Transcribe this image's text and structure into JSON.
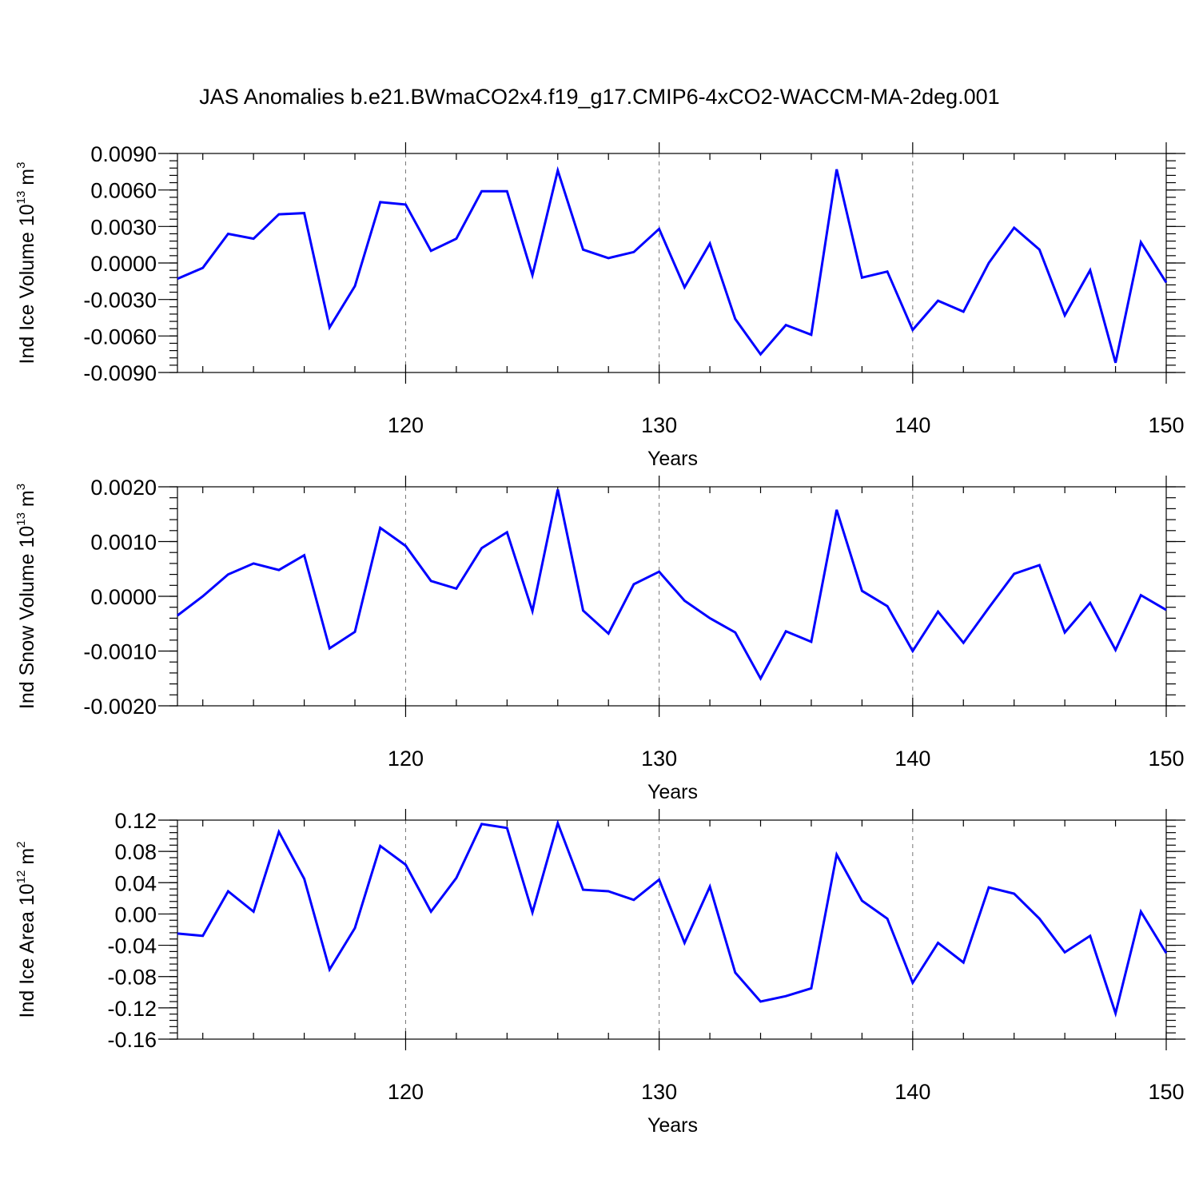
{
  "title": "JAS Anomalies b.e21.BWmaCO2x4.f19_g17.CMIP6-4xCO2-WACCM-MA-2deg.001",
  "chart_data": [
    {
      "type": "line",
      "xlabel": "Years",
      "ylabel": "Ind Ice Volume 10",
      "ylabel_sup": "13",
      "ylabel_unit": " m",
      "ylabel_unit_sup": "3",
      "xlim": [
        111,
        150
      ],
      "ylim": [
        -0.009,
        0.009
      ],
      "x_ticks": [
        120,
        130,
        140,
        150
      ],
      "y_ticks": [
        "0.0090",
        "0.0060",
        "0.0030",
        "0.0000",
        "-0.0030",
        "-0.0060",
        "-0.0090"
      ],
      "y_tick_values": [
        0.009,
        0.006,
        0.003,
        0.0,
        -0.003,
        -0.006,
        -0.009
      ],
      "grid": "dashed vertical at major x ticks",
      "series": [
        {
          "color": "#0000ff",
          "x": [
            111,
            112,
            113,
            114,
            115,
            116,
            117,
            118,
            119,
            120,
            121,
            122,
            123,
            124,
            125,
            126,
            127,
            128,
            129,
            130,
            131,
            132,
            133,
            134,
            135,
            136,
            137,
            138,
            139,
            140,
            141,
            142,
            143,
            144,
            145,
            146,
            147,
            148,
            149,
            150
          ],
          "y": [
            -0.0013,
            -0.0004,
            0.0024,
            0.002,
            0.004,
            0.0041,
            -0.0053,
            -0.0019,
            0.005,
            0.0048,
            0.001,
            0.002,
            0.0059,
            0.0059,
            -0.001,
            0.0076,
            0.0011,
            0.0004,
            0.0009,
            0.0028,
            -0.002,
            0.0016,
            -0.0046,
            -0.0075,
            -0.0051,
            -0.0059,
            0.0077,
            -0.0012,
            -0.0007,
            -0.0055,
            -0.0031,
            -0.004,
            0.0,
            0.0029,
            0.0011,
            -0.0043,
            -0.0006,
            -0.0082,
            0.0017,
            -0.0016
          ]
        }
      ]
    },
    {
      "type": "line",
      "xlabel": "Years",
      "ylabel": "Ind Snow Volume 10",
      "ylabel_sup": "13",
      "ylabel_unit": " m",
      "ylabel_unit_sup": "3",
      "xlim": [
        111,
        150
      ],
      "ylim": [
        -0.002,
        0.002
      ],
      "x_ticks": [
        120,
        130,
        140,
        150
      ],
      "y_ticks": [
        "0.0020",
        "0.0010",
        "0.0000",
        "-0.0010",
        "-0.0020"
      ],
      "y_tick_values": [
        0.002,
        0.001,
        0.0,
        -0.001,
        -0.002
      ],
      "grid": "dashed vertical at major x ticks",
      "series": [
        {
          "color": "#0000ff",
          "x": [
            111,
            112,
            113,
            114,
            115,
            116,
            117,
            118,
            119,
            120,
            121,
            122,
            123,
            124,
            125,
            126,
            127,
            128,
            129,
            130,
            131,
            132,
            133,
            134,
            135,
            136,
            137,
            138,
            139,
            140,
            141,
            142,
            143,
            144,
            145,
            146,
            147,
            148,
            149,
            150
          ],
          "y": [
            -0.00035,
            0.0,
            0.0004,
            0.0006,
            0.00048,
            0.00075,
            -0.00095,
            -0.00065,
            0.00125,
            0.00092,
            0.00028,
            0.00014,
            0.00088,
            0.00117,
            -0.00027,
            0.00195,
            -0.00026,
            -0.00068,
            0.00022,
            0.00045,
            -8e-05,
            -0.0004,
            -0.00066,
            -0.0015,
            -0.00064,
            -0.00083,
            0.00158,
            0.0001,
            -0.00018,
            -0.001,
            -0.00028,
            -0.00085,
            -0.00021,
            0.00041,
            0.00057,
            -0.00066,
            -0.00012,
            -0.00098,
            2e-05,
            -0.00025
          ]
        }
      ]
    },
    {
      "type": "line",
      "xlabel": "Years",
      "ylabel": "Ind Ice Area 10",
      "ylabel_sup": "12",
      "ylabel_unit": " m",
      "ylabel_unit_sup": "2",
      "xlim": [
        111,
        150
      ],
      "ylim": [
        -0.16,
        0.12
      ],
      "x_ticks": [
        120,
        130,
        140,
        150
      ],
      "y_ticks": [
        "0.12",
        "0.08",
        "0.04",
        "0.00",
        "-0.04",
        "-0.08",
        "-0.12",
        "-0.16"
      ],
      "y_tick_values": [
        0.12,
        0.08,
        0.04,
        0.0,
        -0.04,
        -0.08,
        -0.12,
        -0.16
      ],
      "grid": "dashed vertical at major x ticks",
      "series": [
        {
          "color": "#0000ff",
          "x": [
            111,
            112,
            113,
            114,
            115,
            116,
            117,
            118,
            119,
            120,
            121,
            122,
            123,
            124,
            125,
            126,
            127,
            128,
            129,
            130,
            131,
            132,
            133,
            134,
            135,
            136,
            137,
            138,
            139,
            140,
            141,
            142,
            143,
            144,
            145,
            146,
            147,
            148,
            149,
            150
          ],
          "y": [
            -0.025,
            -0.028,
            0.029,
            0.003,
            0.105,
            0.045,
            -0.071,
            -0.018,
            0.087,
            0.063,
            0.003,
            0.046,
            0.115,
            0.11,
            0.002,
            0.116,
            0.031,
            0.029,
            0.018,
            0.044,
            -0.037,
            0.035,
            -0.075,
            -0.112,
            -0.105,
            -0.095,
            0.076,
            0.017,
            -0.006,
            -0.088,
            -0.037,
            -0.062,
            0.034,
            0.026,
            -0.006,
            -0.049,
            -0.028,
            -0.127,
            0.003,
            -0.05
          ]
        }
      ]
    }
  ]
}
